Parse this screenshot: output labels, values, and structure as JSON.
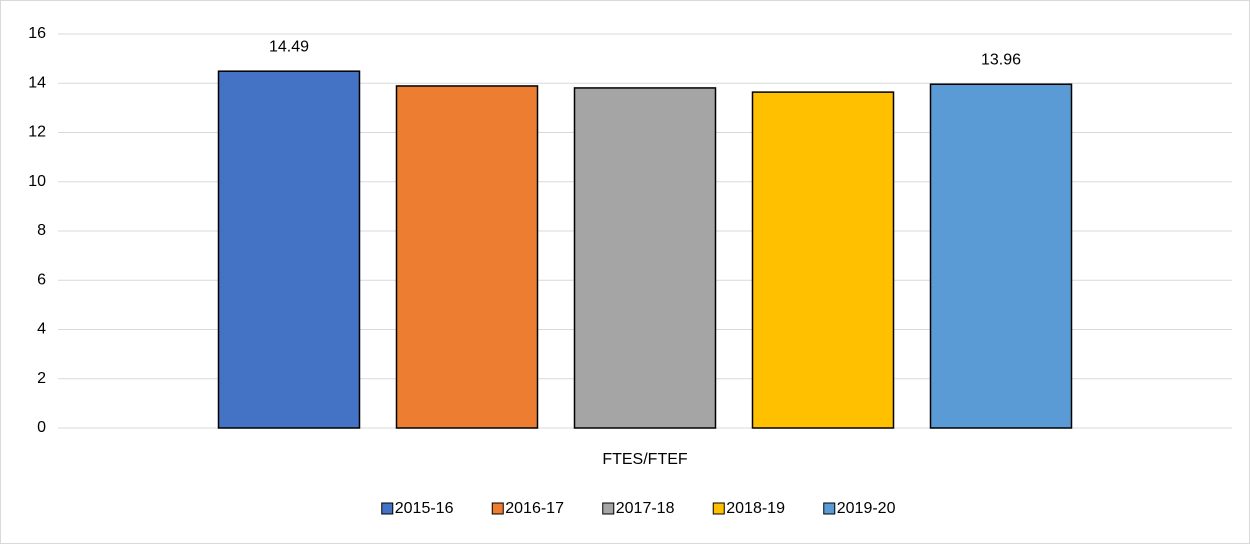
{
  "chart_data": {
    "type": "bar",
    "categories": [
      "FTES/FTEF"
    ],
    "series": [
      {
        "name": "2015-16",
        "color": "#4472c4",
        "values": [
          14.49
        ],
        "data_label": true
      },
      {
        "name": "2016-17",
        "color": "#ed7d31",
        "values": [
          13.89
        ],
        "data_label": false
      },
      {
        "name": "2017-18",
        "color": "#a5a5a5",
        "values": [
          13.81
        ],
        "data_label": false
      },
      {
        "name": "2018-19",
        "color": "#ffc000",
        "values": [
          13.64
        ],
        "data_label": false
      },
      {
        "name": "2019-20",
        "color": "#5b9bd5",
        "values": [
          13.96
        ],
        "data_label": true
      }
    ],
    "ylim": [
      0,
      16
    ],
    "yticks": [
      0,
      2,
      4,
      6,
      8,
      10,
      12,
      14,
      16
    ],
    "grid": true,
    "legend": "bottom"
  }
}
